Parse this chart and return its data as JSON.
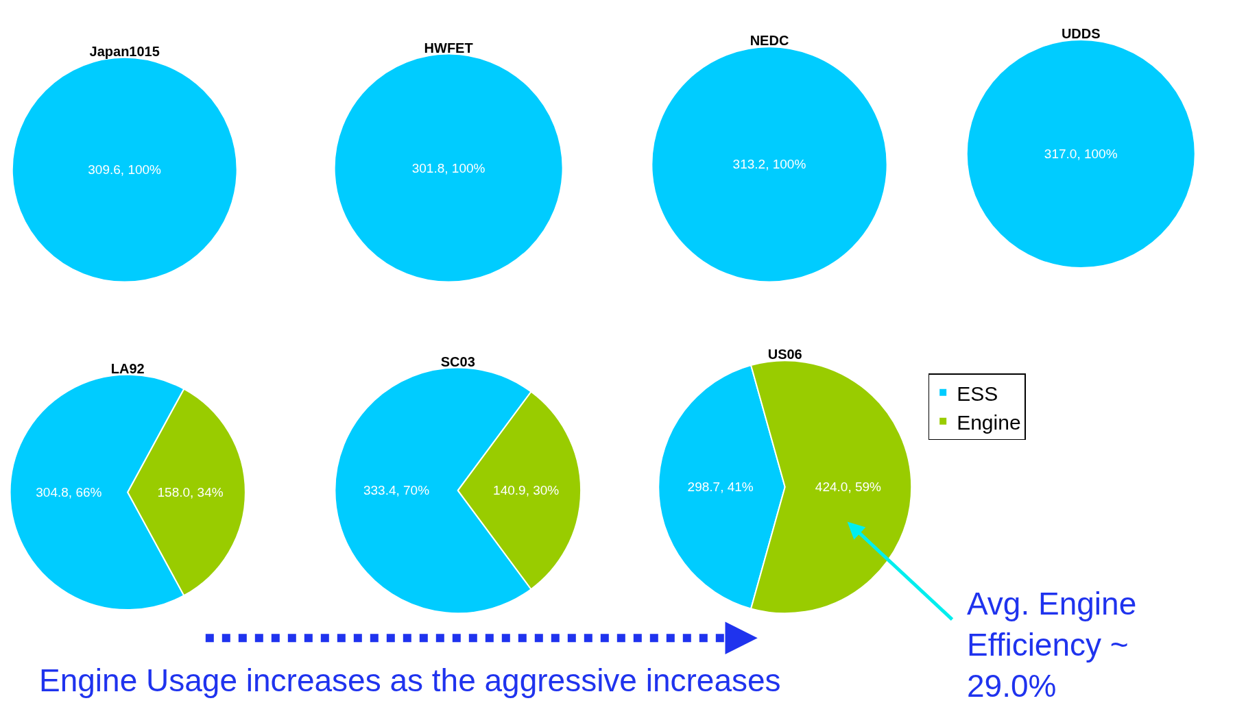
{
  "chart_data": [
    {
      "type": "pie",
      "title": "Japan1015",
      "categories": [
        null
      ],
      "values": [
        309.6
      ],
      "colors": [
        "#00ccff"
      ],
      "value_labels": [
        "309.6, 100%"
      ]
    },
    {
      "type": "pie",
      "title": "HWFET",
      "categories": [
        null
      ],
      "values": [
        301.8
      ],
      "colors": [
        "#00ccff"
      ],
      "value_labels": [
        "301.8, 100%"
      ]
    },
    {
      "type": "pie",
      "title": "NEDC",
      "categories": [
        null
      ],
      "values": [
        313.2
      ],
      "colors": [
        "#00ccff"
      ],
      "value_labels": [
        "313.2, 100%"
      ]
    },
    {
      "type": "pie",
      "title": "UDDS",
      "categories": [
        null
      ],
      "values": [
        317.0
      ],
      "colors": [
        "#00ccff"
      ],
      "value_labels": [
        "317.0, 100%"
      ]
    },
    {
      "type": "pie",
      "title": "LA92",
      "categories": [
        null,
        null
      ],
      "values": [
        304.8,
        158.0
      ],
      "colors": [
        "#00ccff",
        "#99cc00"
      ],
      "value_labels": [
        "304.8, 66%",
        "158.0, 34%"
      ]
    },
    {
      "type": "pie",
      "title": "SC03",
      "categories": [
        null,
        null
      ],
      "values": [
        333.4,
        140.9
      ],
      "colors": [
        "#00ccff",
        "#99cc00"
      ],
      "value_labels": [
        "333.4, 70%",
        "140.9, 30%"
      ]
    },
    {
      "type": "pie",
      "title": "US06",
      "categories": [
        "ESS",
        "Engine"
      ],
      "values": [
        298.7,
        424.0
      ],
      "colors": [
        "#00ccff",
        "#99cc00"
      ],
      "value_labels": [
        "298.7, 41%",
        "424.0, 59%"
      ],
      "legend": "right",
      "annotations": [
        "Engine Usage increases as the aggressive increases",
        "Avg. Engine\nEfficiency ~\n29.0%"
      ]
    }
  ]
}
